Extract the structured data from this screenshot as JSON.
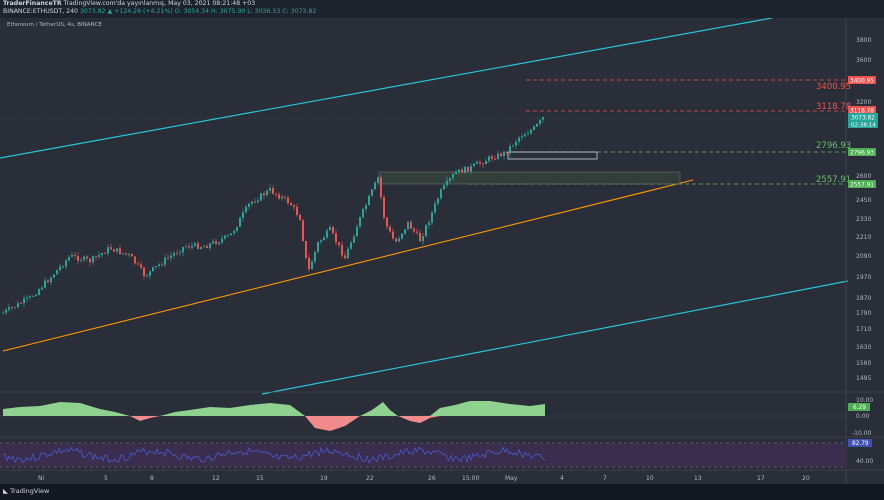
{
  "header": {
    "author": "TraderFinanceTR",
    "published_text": " TradingView.com'da yayınlanmış, May 03, 2021 08:21:48 +03",
    "symbol": "BINANCE:ETHUSDT, 240 ",
    "change": "3073.82 ▲ +124.26 (+4.21%)",
    "ohlc": " O: 3054.34  H: 3075.00  L: 3036.53  C: 3073.82"
  },
  "pane_title": "Ethereum / TetherUS, 4s, BINANCE",
  "footer": {
    "logo": "TradingView"
  },
  "colors": {
    "background": "#2a2e39",
    "channel": "#26c6da",
    "trendline": "#ff9800",
    "resistance": "#ef5350",
    "support": "#66bb6a",
    "candle_up": "#26a69a",
    "candle_down": "#ef5350",
    "oscillator_pos": "#8fd18f",
    "oscillator_neg": "#f28b8b",
    "rsi_line": "#3f51b5",
    "rsi_band": "#3b2d4d"
  },
  "chart_data": {
    "type": "candlestick",
    "title": "Ethereum / TetherUS, 4s, BINANCE",
    "y_axis_ticks": [
      3800.0,
      3600.0,
      3400.0,
      3200.0,
      2600.0,
      2450.0,
      2330.0,
      2210.0,
      2090.0,
      1970.0,
      1870.0,
      1790.0,
      1710.0,
      1630.0,
      1560.0,
      1495.0
    ],
    "x_axis_ticks": [
      "Ni",
      "5",
      "8",
      "12",
      "15",
      "19",
      "22",
      "26",
      "15:00",
      "May",
      "4",
      "7",
      "10",
      "13",
      "17",
      "20"
    ],
    "last_price": 3073.82,
    "countdown": "02:38:14",
    "levels": [
      {
        "label": "3400.95",
        "value": 3400.95,
        "kind": "resistance"
      },
      {
        "label": "3118.78",
        "value": 3118.78,
        "kind": "resistance"
      },
      {
        "label": "2796.93",
        "value": 2796.93,
        "kind": "support"
      },
      {
        "label": "2557.91",
        "value": 2557.91,
        "kind": "support"
      }
    ],
    "oscillator": {
      "ticks": [
        "10.00",
        "0.00",
        "-10.00"
      ],
      "last_label": "6.29"
    },
    "rsi": {
      "ticks": [
        "40.00"
      ],
      "last_label": "82.79"
    }
  }
}
